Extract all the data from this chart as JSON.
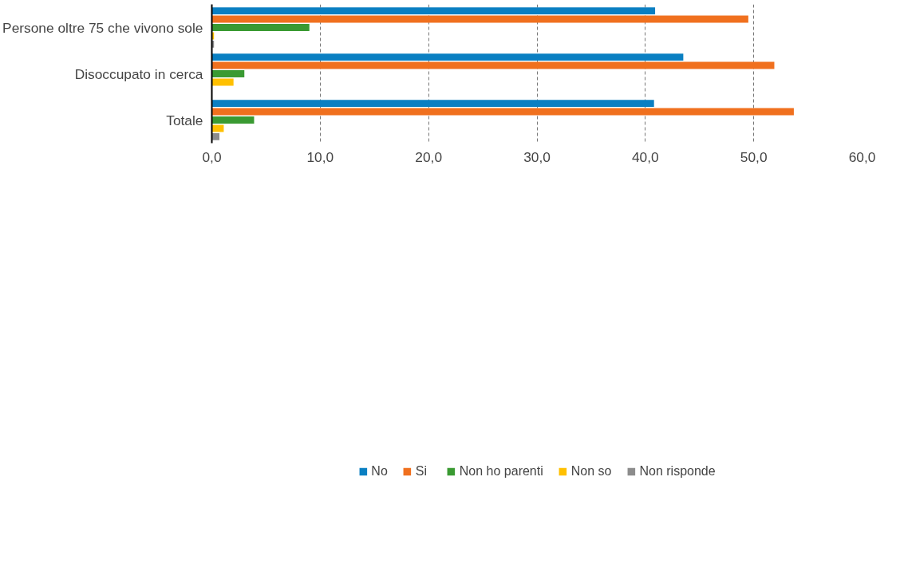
{
  "chart_data": {
    "type": "bar",
    "orientation": "horizontal",
    "categories": [
      "Persone oltre 75 che vivono sole",
      "Disoccupato in cerca",
      "Totale"
    ],
    "series": [
      {
        "name": "No",
        "color": "#0a7fc2",
        "values": [
          40.9,
          43.5,
          40.8
        ]
      },
      {
        "name": "Si",
        "color": "#f0701e",
        "values": [
          49.5,
          51.9,
          53.7
        ]
      },
      {
        "name": "Non ho parenti",
        "color": "#3a9a32",
        "values": [
          9.0,
          3.0,
          3.9
        ]
      },
      {
        "name": "Non so",
        "color": "#ffc000",
        "values": [
          0.2,
          2.0,
          1.1
        ]
      },
      {
        "name": "Non risponde",
        "color": "#8c8c8c",
        "values": [
          0.2,
          null,
          0.7
        ]
      }
    ],
    "xlim": [
      0,
      60
    ],
    "xticks": [
      {
        "value": 0,
        "label": "0,0"
      },
      {
        "value": 10,
        "label": "10,0"
      },
      {
        "value": 20,
        "label": "20,0"
      },
      {
        "value": 30,
        "label": "30,0"
      },
      {
        "value": 40,
        "label": "40,0"
      },
      {
        "value": 50,
        "label": "50,0"
      },
      {
        "value": 60,
        "label": "60,0"
      }
    ],
    "grid": "x",
    "legend": "bottom"
  }
}
